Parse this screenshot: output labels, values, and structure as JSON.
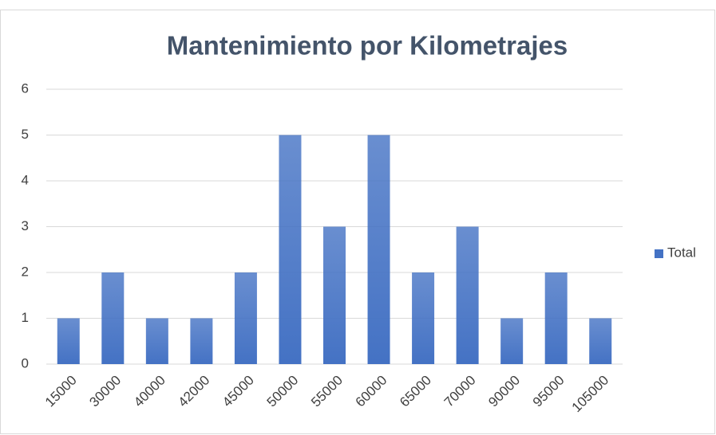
{
  "chart_data": {
    "type": "bar",
    "title": "Mantenimiento por Kilometrajes",
    "categories": [
      "15000",
      "30000",
      "40000",
      "42000",
      "45000",
      "50000",
      "55000",
      "60000",
      "65000",
      "70000",
      "90000",
      "95000",
      "105000"
    ],
    "series": [
      {
        "name": "Total",
        "color": "#4472c4",
        "values": [
          1,
          2,
          1,
          1,
          2,
          5,
          3,
          5,
          2,
          3,
          1,
          2,
          1
        ]
      }
    ],
    "ylim": [
      0,
      6
    ],
    "yticks": [
      0,
      1,
      2,
      3,
      4,
      5,
      6
    ],
    "grid": true,
    "legend": "right"
  }
}
